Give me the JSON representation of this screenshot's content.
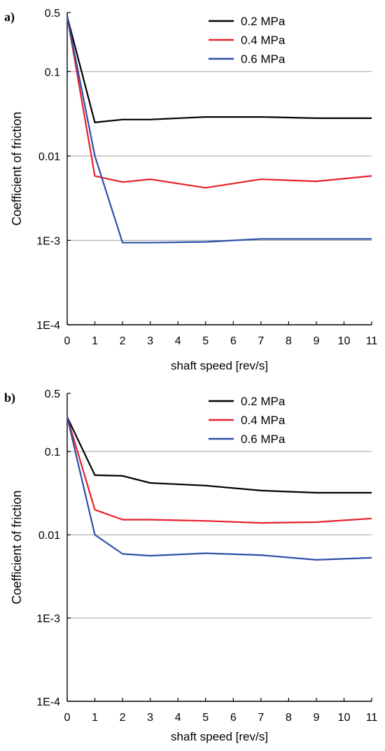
{
  "chart_data": [
    {
      "panel_label": "a)",
      "type": "line",
      "x": [
        0,
        1,
        2,
        3,
        5,
        7,
        9,
        11
      ],
      "series": [
        {
          "name": "0.2 MPa",
          "color": "#000000",
          "values": [
            0.45,
            0.025,
            0.027,
            0.027,
            0.029,
            0.029,
            0.028,
            0.028
          ]
        },
        {
          "name": "0.4 MPa",
          "color": "#e8202a",
          "values": [
            0.45,
            0.0058,
            0.0049,
            0.0053,
            0.0042,
            0.0053,
            0.005,
            0.0058
          ]
        },
        {
          "name": "0.6 MPa",
          "color": "#2c4ea8",
          "values": [
            0.45,
            0.01,
            0.00094,
            0.00094,
            0.00096,
            0.00104,
            0.00104,
            0.00104
          ]
        }
      ],
      "xlabel": "shaft speed [rev/s]",
      "ylabel": "Coefficient  of  friction",
      "xlim": [
        0,
        11
      ],
      "ylim": [
        0.0001,
        0.5
      ],
      "yscale": "log",
      "x_ticks": [
        "0",
        "1",
        "2",
        "3",
        "4",
        "5",
        "6",
        "7",
        "8",
        "9",
        "10",
        "11"
      ],
      "y_ticks": [
        {
          "value": 0.5,
          "label": "0.5"
        },
        {
          "value": 0.1,
          "label": "0.1"
        },
        {
          "value": 0.01,
          "label": "0.01"
        },
        {
          "value": 0.001,
          "label": "1E-3"
        },
        {
          "value": 0.0001,
          "label": "1E-4"
        }
      ],
      "grid": "horizontal at 0.1, 0.01, 1E-3",
      "legend_position": "top-right"
    },
    {
      "panel_label": "b)",
      "type": "line",
      "x": [
        0,
        1,
        2,
        3,
        5,
        7,
        9,
        11
      ],
      "series": [
        {
          "name": "0.2 MPa",
          "color": "#000000",
          "values": [
            0.26,
            0.052,
            0.051,
            0.042,
            0.039,
            0.034,
            0.032,
            0.032
          ]
        },
        {
          "name": "0.4 MPa",
          "color": "#e8202a",
          "values": [
            0.26,
            0.02,
            0.0152,
            0.0152,
            0.0147,
            0.0139,
            0.0142,
            0.0157
          ]
        },
        {
          "name": "0.6 MPa",
          "color": "#2c4ea8",
          "values": [
            0.26,
            0.01,
            0.0059,
            0.0056,
            0.006,
            0.0057,
            0.005,
            0.0053
          ]
        }
      ],
      "xlabel": "shaft speed [rev/s]",
      "ylabel": "Coefficient  of  friction",
      "xlim": [
        0,
        11
      ],
      "ylim": [
        0.0001,
        0.5
      ],
      "yscale": "log",
      "x_ticks": [
        "0",
        "1",
        "2",
        "3",
        "4",
        "5",
        "6",
        "7",
        "8",
        "9",
        "10",
        "11"
      ],
      "y_ticks": [
        {
          "value": 0.5,
          "label": "0.5"
        },
        {
          "value": 0.1,
          "label": "0.1"
        },
        {
          "value": 0.01,
          "label": "0.01"
        },
        {
          "value": 0.001,
          "label": "1E-3"
        },
        {
          "value": 0.0001,
          "label": "1E-4"
        }
      ],
      "grid": "horizontal at 0.1, 0.01, 1E-3",
      "legend_position": "top-right"
    }
  ]
}
